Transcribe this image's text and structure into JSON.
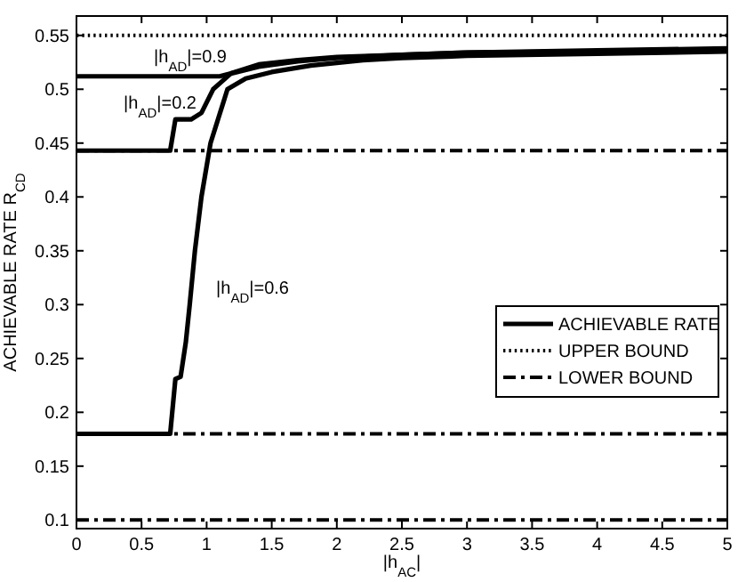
{
  "chart_data": {
    "type": "line",
    "xlabel": "|h$_{AC}$|",
    "ylabel": "ACHIEVABLE RATE R$_{CD}$",
    "xlim": [
      0,
      5
    ],
    "ylim": [
      0.092,
      0.568
    ],
    "xticks": [
      0,
      0.5,
      1,
      1.5,
      2,
      2.5,
      3,
      3.5,
      4,
      4.5,
      5
    ],
    "yticks": [
      0.1,
      0.15,
      0.2,
      0.25,
      0.3,
      0.35,
      0.4,
      0.45,
      0.5,
      0.55
    ],
    "grid": false,
    "legend": "right",
    "marker": "none",
    "series": [
      {
        "name": "ACHIEVABLE RATE",
        "color": "#000000",
        "line_style": "solid",
        "x": [
          0,
          1.1,
          1.2,
          1.4,
          1.7,
          2,
          2.5,
          3,
          4,
          5
        ],
        "values": [
          0.512,
          0.512,
          0.515,
          0.521,
          0.526,
          0.529,
          0.532,
          0.534,
          0.536,
          0.538
        ]
      },
      {
        "color": "#000000",
        "line_style": "solid",
        "x": [
          0,
          0.72,
          0.76,
          0.88,
          0.96,
          1.05,
          1.19,
          1.4,
          1.7,
          2,
          2.5,
          3,
          4,
          5
        ],
        "values": [
          0.443,
          0.443,
          0.472,
          0.472,
          0.478,
          0.5,
          0.515,
          0.523,
          0.527,
          0.53,
          0.532,
          0.534,
          0.535,
          0.536
        ]
      },
      {
        "color": "#000000",
        "line_style": "solid",
        "x": [
          0,
          0.72,
          0.76,
          0.8,
          0.84,
          0.87,
          0.91,
          0.96,
          1.03,
          1.16,
          1.3,
          1.5,
          1.8,
          2.2,
          2.5,
          3,
          4,
          5
        ],
        "values": [
          0.18,
          0.18,
          0.231,
          0.233,
          0.265,
          0.3,
          0.35,
          0.4,
          0.45,
          0.5,
          0.51,
          0.516,
          0.522,
          0.527,
          0.529,
          0.531,
          0.533,
          0.535
        ]
      },
      {
        "name": "UPPER BOUND",
        "color": "#000000",
        "line_style": "dotted",
        "x": [
          0,
          5
        ],
        "values": [
          0.55,
          0.55
        ]
      },
      {
        "name": "LOWER BOUND",
        "color": "#000000",
        "line_style": "dashed",
        "x": [
          0,
          5
        ],
        "values": [
          0.443,
          0.443
        ]
      },
      {
        "color": "#000000",
        "line_style": "dashed",
        "x": [
          0,
          5
        ],
        "values": [
          0.18,
          0.18
        ]
      },
      {
        "color": "#000000",
        "line_style": "dashed",
        "x": [
          0,
          5
        ],
        "values": [
          0.1,
          0.1
        ]
      }
    ],
    "annotations": [
      "|h$_{AD}$|=0.9",
      "|h$_{AD}$|=0.2",
      "|h$_{AD}$|=0.6"
    ]
  }
}
